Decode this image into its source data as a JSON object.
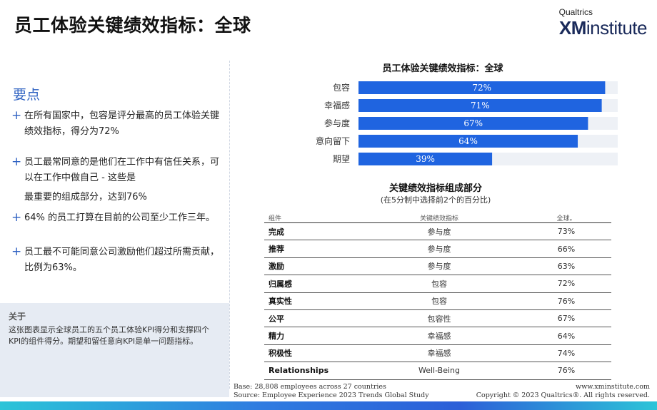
{
  "title": "员工体验关键绩效指标：全球",
  "logo": {
    "small": "Qualtrics",
    "xm": "XM",
    "rest": "institute"
  },
  "key_points": {
    "title": "要点",
    "items": [
      "在所有国家中，包容是评分最高的员工体验关键绩效指标，得分为72%",
      "员工最常同意的是他们在工作中有信任关系，可以在工作中做自己 - 这些是",
      "最重要的组成部分，达到76%",
      "64% 的员工打算在目前的公司至少工作三年。",
      "员工最不可能同意公司激励他们超过所需贡献，比例为63%。"
    ]
  },
  "about": {
    "title": "关于",
    "text": "这张图表显示全球员工的五个员工体验KPI得分和支撑四个KPI的组件得分。期望和留任意向KPI是单一问题指标。"
  },
  "chart_data": {
    "type": "bar",
    "orientation": "horizontal",
    "title": "员工体验关键绩效指标：全球",
    "categories": [
      "包容",
      "幸福感",
      "参与度",
      "意向留下",
      "期望"
    ],
    "values": [
      72,
      71,
      67,
      64,
      39
    ],
    "value_labels": [
      "72%",
      "71%",
      "67%",
      "64%",
      "39%"
    ],
    "xlim": [
      0,
      74
    ],
    "bar_color": "#1f64e0"
  },
  "table": {
    "title": "关键绩效指标组成部分",
    "subtitle": "(在5分制中选择前2个的百分比)",
    "headers": [
      "组件",
      "关键绩效指标",
      "全球。"
    ],
    "rows": [
      [
        "完成",
        "参与度",
        "73%"
      ],
      [
        "推荐",
        "参与度",
        "66%"
      ],
      [
        "激励",
        "参与度",
        "63%"
      ],
      [
        "归属感",
        "包容",
        "72%"
      ],
      [
        "真实性",
        "包容",
        "76%"
      ],
      [
        "公平",
        "包容性",
        "67%"
      ],
      [
        "精力",
        "幸福感",
        "64%"
      ],
      [
        "积极性",
        "幸福感",
        "74%"
      ],
      [
        "Relationships",
        "Well-Being",
        "76%"
      ]
    ]
  },
  "footer": {
    "base": "Base: 28,808 employees across 27 countries",
    "source": "Source: Employee Experience 2023 Trends Global Study",
    "url": "www.xminstitute.com",
    "copyright": "Copyright © 2023 Qualtrics®. All rights reserved."
  }
}
